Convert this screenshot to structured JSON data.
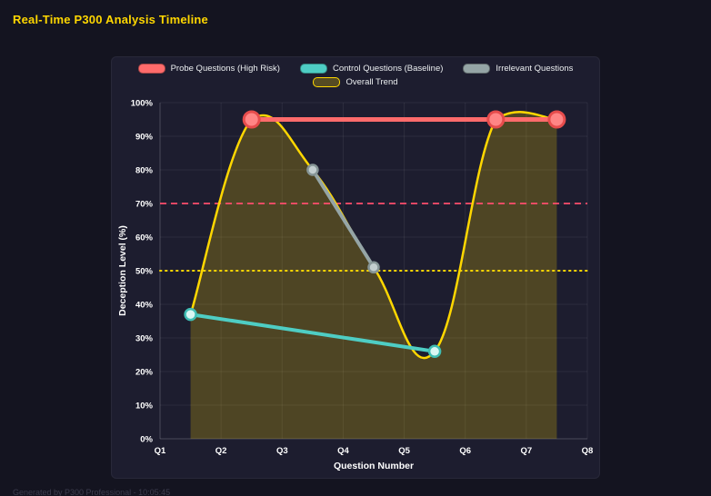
{
  "page": {
    "title": "Real-Time P300 Analysis Timeline",
    "footer": "Generated by P300 Professional - 10:05:45"
  },
  "colors": {
    "background": "#141420",
    "panel": "#1d1d2f",
    "title": "#ffd700",
    "grid": "rgba(255,255,255,0.07)",
    "tick_text": "#ffffff"
  },
  "chart_data": {
    "type": "line",
    "title": "Real-Time P300 Analysis Timeline",
    "xlabel": "Question Number",
    "ylabel": "Deception Level (%)",
    "x_ticks": [
      "Q1",
      "Q2",
      "Q3",
      "Q4",
      "Q5",
      "Q6",
      "Q7",
      "Q8"
    ],
    "x_range": [
      1,
      8
    ],
    "ylim": [
      0,
      100
    ],
    "y_tick_step": 10,
    "y_ticks": [
      "0%",
      "10%",
      "20%",
      "30%",
      "40%",
      "50%",
      "60%",
      "70%",
      "80%",
      "90%",
      "100%"
    ],
    "grid": true,
    "legend_position": "top",
    "series": [
      {
        "id": "probe",
        "name": "Probe Questions (High Risk)",
        "color": "#ff6b6b",
        "point_fill": "#ff8585",
        "point_stroke": "#e64c4c",
        "line_width": 5,
        "marker_radius": 8.5,
        "smooth": false,
        "fill": false,
        "points": [
          {
            "x": 2.5,
            "y": 95
          },
          {
            "x": 6.5,
            "y": 95
          },
          {
            "x": 7.5,
            "y": 95
          }
        ]
      },
      {
        "id": "control",
        "name": "Control Questions (Baseline)",
        "color": "#4ecdc4",
        "point_fill": "#d9f6f3",
        "point_stroke": "#3fbdb4",
        "line_width": 4,
        "marker_radius": 6,
        "smooth": false,
        "fill": false,
        "points": [
          {
            "x": 1.5,
            "y": 37
          },
          {
            "x": 5.5,
            "y": 26
          }
        ]
      },
      {
        "id": "irrelevant",
        "name": "Irrelevant Questions",
        "color": "#95a5a6",
        "point_fill": "#c3cecf",
        "point_stroke": "#869596",
        "line_width": 4,
        "marker_radius": 5.5,
        "smooth": false,
        "fill": false,
        "points": [
          {
            "x": 3.5,
            "y": 80
          },
          {
            "x": 4.5,
            "y": 51
          }
        ]
      },
      {
        "id": "trend",
        "name": "Overall Trend",
        "color": "#ffd700",
        "fill_color": "rgba(255,215,0,0.22)",
        "line_width": 2.5,
        "marker_radius": 0,
        "smooth": true,
        "fill": true,
        "points": [
          {
            "x": 1.5,
            "y": 37
          },
          {
            "x": 2.5,
            "y": 95
          },
          {
            "x": 3.5,
            "y": 80
          },
          {
            "x": 4.5,
            "y": 51
          },
          {
            "x": 5.5,
            "y": 26
          },
          {
            "x": 6.5,
            "y": 95
          },
          {
            "x": 7.5,
            "y": 95
          }
        ]
      }
    ],
    "thresholds": [
      {
        "value": 70,
        "color": "#ff4d6d",
        "style": "dashed"
      },
      {
        "value": 50,
        "color": "#ffd700",
        "style": "dotted"
      }
    ]
  }
}
